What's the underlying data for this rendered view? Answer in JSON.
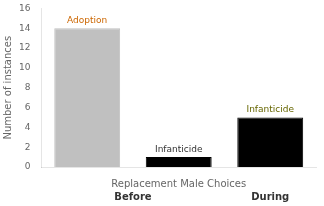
{
  "chart_data": {
    "type": "bar",
    "categories": [
      null,
      null,
      null
    ],
    "values": [
      14,
      1,
      5
    ],
    "colors": [
      "#c0c0c0",
      "#000000",
      "#000000"
    ],
    "annotations": [
      {
        "text": "Adoption",
        "color": "#cc6600"
      },
      {
        "text": "Infanticide",
        "color": "#333333"
      },
      {
        "text": "Infanticide",
        "color": "#666600"
      }
    ],
    "groups": [
      {
        "name": "Before",
        "count": 2
      },
      {
        "name": "During",
        "count": 1
      }
    ],
    "xlabel": "Replacement Male Choices",
    "ylabel": "Number of instances",
    "ylim": [
      0,
      16
    ],
    "yticks": [
      0,
      2,
      4,
      6,
      8,
      10,
      12,
      14,
      16
    ],
    "grid": false,
    "tick_labels": "y"
  }
}
